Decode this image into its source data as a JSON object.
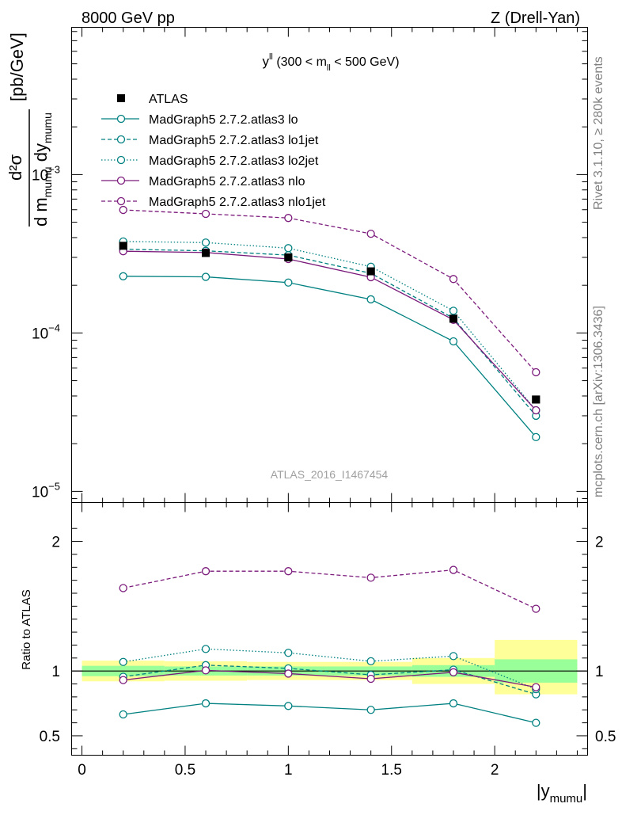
{
  "header": {
    "left": "8000 GeV pp",
    "right": "Z (Drell-Yan)"
  },
  "side_labels": {
    "top": "Rivet 3.1.10, ≥ 280k events",
    "bottom": "mcplots.cern.ch [arXiv:1306.3436]"
  },
  "chart_data": [
    {
      "type": "line",
      "panel": "main",
      "title": {
        "main": "y",
        "sup": "ll",
        "rest": " (300 < m",
        "sub": "ll",
        "end": " < 500 GeV)"
      },
      "ylabel": {
        "frac_num": "d²σ",
        "frac_den": "d m",
        "den_sub": "mumu",
        "den_mid": " dy",
        "den_sub2": "mumu",
        "unit": "[pb/GeV]"
      },
      "yscale": "log",
      "ylim": [
        8.5e-06,
        0.0085
      ],
      "xlim": [
        -0.05,
        2.45
      ],
      "y_tick_labels": [
        {
          "value": 1e-05,
          "base": "10",
          "exp": "−5"
        },
        {
          "value": 0.0001,
          "base": "10",
          "exp": "−4"
        },
        {
          "value": 0.001,
          "base": "10",
          "exp": "−3"
        }
      ],
      "watermark": "ATLAS_2016_I1467454",
      "legend_placement": "top-left",
      "x": [
        0.2,
        0.6,
        1.0,
        1.4,
        1.8,
        2.2
      ],
      "x_bins": [
        [
          0,
          0.4
        ],
        [
          0.4,
          0.8
        ],
        [
          0.8,
          1.2
        ],
        [
          1.2,
          1.6
        ],
        [
          1.6,
          2.0
        ],
        [
          2.0,
          2.4
        ]
      ],
      "series": [
        {
          "name": "ATLAS",
          "color": "#000000",
          "dash": "none",
          "marker": "square",
          "values": [
            0.000355,
            0.00032,
            0.0003,
            0.000245,
            0.000123,
            3.8e-05
          ]
        },
        {
          "name": "MadGraph5 2.7.2.atlas3 lo",
          "color": "#008080",
          "dash": "solid",
          "marker": "circle",
          "values": [
            0.000228,
            0.000226,
            0.000208,
            0.000163,
            8.85e-05,
            2.2e-05
          ]
        },
        {
          "name": "MadGraph5 2.7.2.atlas3 lo1jet",
          "color": "#008080",
          "dash": "dashed",
          "marker": "circle",
          "values": [
            0.000338,
            0.00033,
            0.00031,
            0.000238,
            0.000124,
            3e-05
          ]
        },
        {
          "name": "MadGraph5 2.7.2.atlas3 lo2jet",
          "color": "#008080",
          "dash": "dotted",
          "marker": "circle",
          "values": [
            0.000378,
            0.000372,
            0.000343,
            0.000262,
            0.000138,
            3.25e-05
          ]
        },
        {
          "name": "MadGraph5 2.7.2.atlas3 nlo",
          "color": "#7b1a7b",
          "dash": "solid",
          "marker": "circle",
          "values": [
            0.000328,
            0.000322,
            0.000293,
            0.000225,
            0.000121,
            3.25e-05
          ]
        },
        {
          "name": "MadGraph5 2.7.2.atlas3 nlo1jet",
          "color": "#7b1a7b",
          "dash": "dashed",
          "marker": "circle",
          "values": [
            0.000598,
            0.000565,
            0.000532,
            0.000423,
            0.000219,
            5.65e-05
          ]
        }
      ]
    },
    {
      "type": "line",
      "panel": "ratio",
      "ylabel": "Ratio to ATLAS",
      "xlabel": {
        "base": "|y",
        "sub": "mumu",
        "end": "|"
      },
      "xlim": [
        -0.05,
        2.45
      ],
      "ylim": [
        0.35,
        2.3
      ],
      "x_tick_labels": [
        "0",
        "0.5",
        "1",
        "1.5",
        "2"
      ],
      "x_tick_values": [
        0,
        0.5,
        1,
        1.5,
        2
      ],
      "y_tick_labels": [
        "0.5",
        "1",
        "2"
      ],
      "y_tick_values": [
        0.5,
        1,
        2
      ],
      "x": [
        0.2,
        0.6,
        1.0,
        1.4,
        1.8,
        2.2
      ],
      "x_bins": [
        [
          0,
          0.4
        ],
        [
          0.4,
          0.8
        ],
        [
          0.8,
          1.2
        ],
        [
          1.2,
          1.6
        ],
        [
          1.6,
          2.0
        ],
        [
          2.0,
          2.4
        ]
      ],
      "band_outer": [
        [
          0.92,
          1.08
        ],
        [
          0.925,
          1.075
        ],
        [
          0.93,
          1.07
        ],
        [
          0.93,
          1.07
        ],
        [
          0.9,
          1.1
        ],
        [
          0.82,
          1.24
        ]
      ],
      "band_inner": [
        [
          0.96,
          1.04
        ],
        [
          0.965,
          1.035
        ],
        [
          0.965,
          1.035
        ],
        [
          0.965,
          1.035
        ],
        [
          0.955,
          1.045
        ],
        [
          0.91,
          1.09
        ]
      ],
      "band_colors": {
        "outer": "#ffff99",
        "inner": "#99ff99"
      },
      "series": [
        {
          "name": "MadGraph5 2.7.2.atlas3 lo",
          "values": [
            0.665,
            0.75,
            0.73,
            0.7,
            0.75,
            0.6
          ]
        },
        {
          "name": "MadGraph5 2.7.2.atlas3 lo1jet",
          "values": [
            0.955,
            1.045,
            1.02,
            0.97,
            1.01,
            0.82
          ]
        },
        {
          "name": "MadGraph5 2.7.2.atlas3 lo2jet",
          "values": [
            1.07,
            1.17,
            1.14,
            1.075,
            1.115,
            0.86
          ]
        },
        {
          "name": "MadGraph5 2.7.2.atlas3 nlo",
          "values": [
            0.93,
            1.005,
            0.98,
            0.94,
            0.99,
            0.875
          ]
        },
        {
          "name": "MadGraph5 2.7.2.atlas3 nlo1jet",
          "values": [
            1.64,
            1.77,
            1.77,
            1.72,
            1.78,
            1.48
          ]
        }
      ]
    }
  ]
}
